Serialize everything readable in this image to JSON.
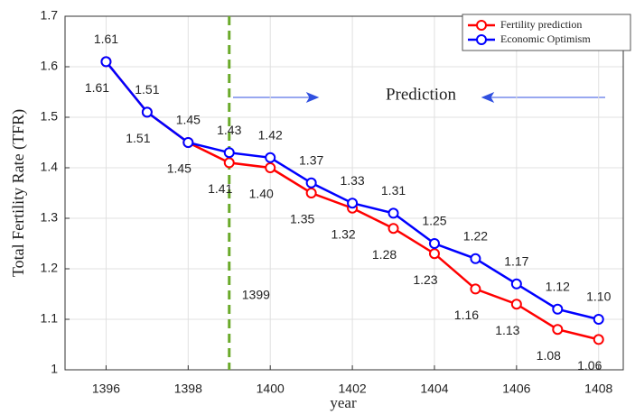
{
  "chart_data": {
    "type": "line",
    "x": [
      1396,
      1397,
      1398,
      1399,
      1400,
      1401,
      1402,
      1403,
      1404,
      1405,
      1406,
      1407,
      1408
    ],
    "series": [
      {
        "name": "Fertility prediction",
        "color": "#ff0000",
        "values": [
          1.61,
          1.51,
          1.45,
          1.41,
          1.4,
          1.35,
          1.32,
          1.28,
          1.23,
          1.16,
          1.13,
          1.08,
          1.06
        ],
        "value_labels": [
          "1.61",
          "1.51",
          "1.45",
          "1.41",
          "1.40",
          "1.35",
          "1.32",
          "1.28",
          "1.23",
          "1.16",
          "1.13",
          "1.08",
          "1.06"
        ]
      },
      {
        "name": "Economic Optimism",
        "color": "#0000ff",
        "values": [
          1.61,
          1.51,
          1.45,
          1.43,
          1.42,
          1.37,
          1.33,
          1.31,
          1.25,
          1.22,
          1.17,
          1.12,
          1.1
        ],
        "value_labels": [
          "1.61",
          "1.51",
          "1.45",
          "1.43",
          "1.42",
          "1.37",
          "1.33",
          "1.31",
          "1.25",
          "1.22",
          "1.17",
          "1.12",
          "1.10"
        ]
      }
    ],
    "xlabel": "year",
    "ylabel": "Total Fertility Rate (TFR)",
    "xlim": [
      1395,
      1408.6
    ],
    "ylim": [
      1,
      1.7
    ],
    "xticks": [
      1396,
      1398,
      1400,
      1402,
      1404,
      1406,
      1408
    ],
    "yticks": [
      1,
      1.1,
      1.2,
      1.3,
      1.4,
      1.5,
      1.6,
      1.7
    ],
    "grid": true,
    "legend": "upper right",
    "vline": {
      "x": 1399,
      "color": "#6aaa2a",
      "label": "1399"
    },
    "annotation": "Prediction"
  }
}
